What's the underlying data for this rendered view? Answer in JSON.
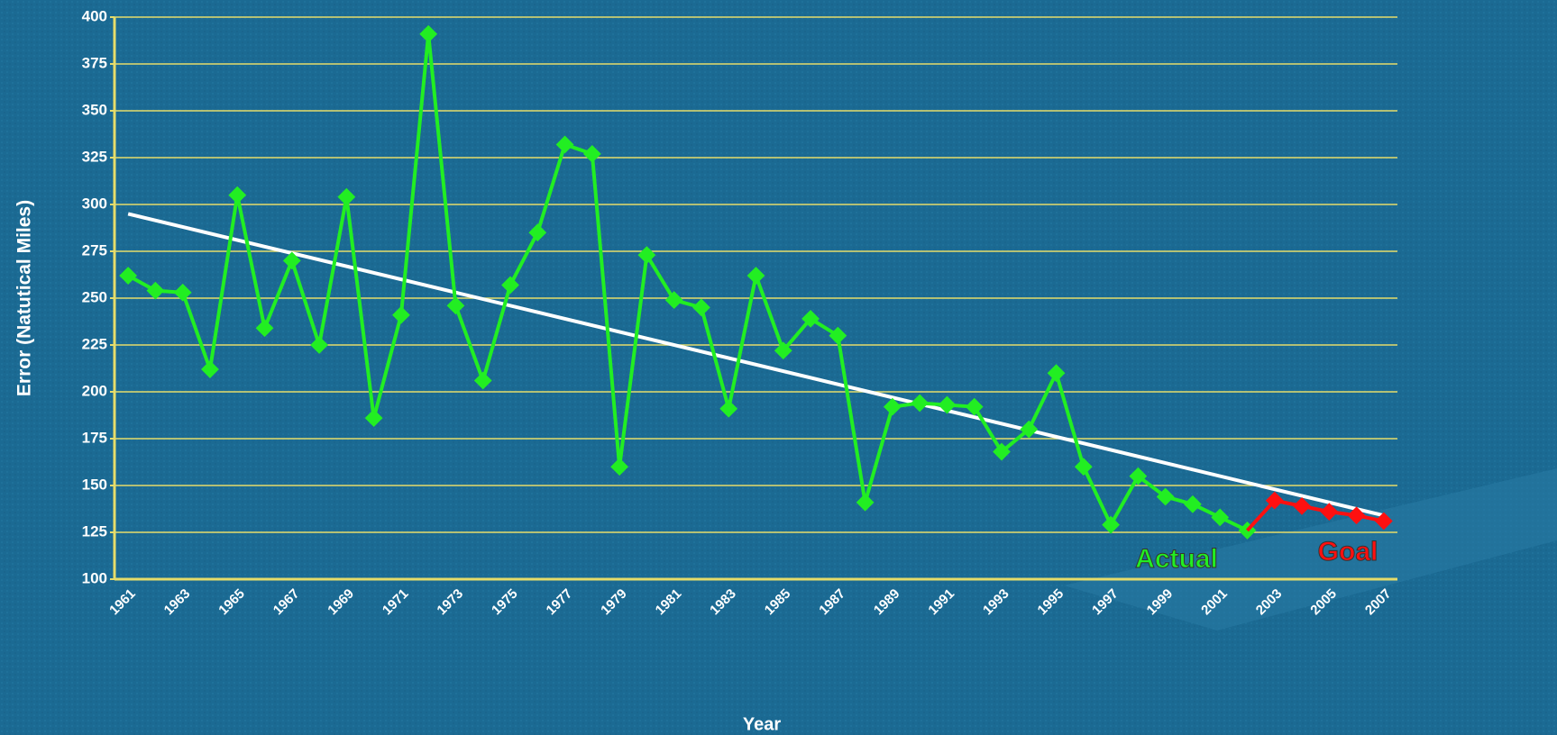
{
  "chart_data": {
    "type": "line",
    "x_label": "Year",
    "y_label": "Error (Natutical Miles)",
    "categories": [
      "1961",
      null,
      "1963",
      null,
      "1965",
      null,
      "1967",
      null,
      "1969",
      null,
      "1971",
      null,
      "1973",
      null,
      "1975",
      null,
      "1977",
      null,
      "1979",
      null,
      "1981",
      null,
      "1983",
      null,
      "1985",
      null,
      "1987",
      null,
      "1989",
      null,
      "1991",
      null,
      "1993",
      null,
      "1995",
      null,
      "1997",
      null,
      "1999",
      null,
      "2001",
      null,
      "2003",
      null,
      "2005",
      null,
      "2007"
    ],
    "series": [
      {
        "color": "#22ee22",
        "values": [
          262,
          254,
          253,
          212,
          305,
          234,
          270,
          225,
          304,
          186,
          241,
          391,
          246,
          206,
          257,
          285,
          332,
          327,
          160,
          273,
          249,
          245,
          191,
          262,
          222,
          239,
          230,
          141,
          192,
          194,
          193,
          192,
          168,
          180,
          210,
          160,
          129,
          155,
          144,
          140,
          133,
          126,
          null,
          null,
          null,
          null,
          null
        ]
      },
      {
        "color": "#ff1010",
        "values": [
          null,
          null,
          null,
          null,
          null,
          null,
          null,
          null,
          null,
          null,
          null,
          null,
          null,
          null,
          null,
          null,
          null,
          null,
          null,
          null,
          null,
          null,
          null,
          null,
          null,
          null,
          null,
          null,
          null,
          null,
          null,
          null,
          null,
          null,
          null,
          null,
          null,
          null,
          null,
          null,
          null,
          126,
          142,
          139,
          136,
          134,
          131
        ]
      }
    ],
    "trendline": {
      "color": "#ffffff",
      "values": [
        295,
        134
      ]
    },
    "annotations": [
      {
        "text": "Actual",
        "color": "#22ee22"
      },
      {
        "text": "Goal",
        "color": "#ff1010"
      }
    ],
    "ylim": [
      100,
      400
    ],
    "yticks": [
      100,
      125,
      150,
      175,
      200,
      225,
      250,
      275,
      300,
      325,
      350,
      375,
      400
    ],
    "grid": true,
    "grid_color": "#e6dc6a"
  }
}
